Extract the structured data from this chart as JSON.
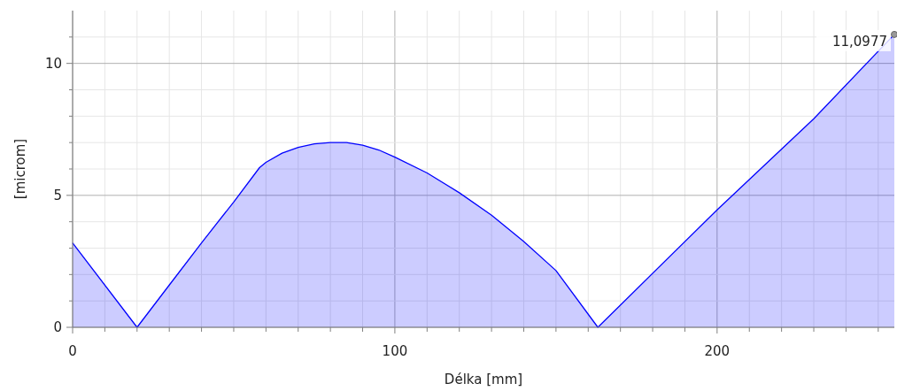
{
  "chart_data": {
    "type": "area",
    "xlabel": "Délka [mm]",
    "ylabel": "[microm]",
    "x": [
      0,
      20,
      30,
      40,
      50,
      58,
      60,
      65,
      70,
      75,
      80,
      85,
      90,
      95,
      100,
      110,
      120,
      130,
      140,
      150,
      163,
      200,
      230,
      255
    ],
    "series": [
      {
        "color": "#0000ff",
        "values": [
          3.2,
          0,
          1.6,
          3.2,
          4.75,
          6.05,
          6.25,
          6.6,
          6.82,
          6.95,
          7.0,
          7.0,
          6.9,
          6.72,
          6.45,
          5.85,
          5.1,
          4.25,
          3.25,
          2.15,
          0,
          4.45,
          7.9,
          11.0977
        ]
      }
    ],
    "xlim": [
      0,
      255
    ],
    "ylim": [
      0,
      12
    ],
    "xticks": [
      0,
      {
        "value": 10,
        "label": null
      },
      {
        "value": 20,
        "label": null
      },
      {
        "value": 30,
        "label": null
      },
      {
        "value": 40,
        "label": null
      },
      {
        "value": 50,
        "label": null
      },
      {
        "value": 60,
        "label": null
      },
      {
        "value": 70,
        "label": null
      },
      {
        "value": 80,
        "label": null
      },
      {
        "value": 90,
        "label": null
      },
      100,
      {
        "value": 110,
        "label": null
      },
      {
        "value": 120,
        "label": null
      },
      {
        "value": 130,
        "label": null
      },
      {
        "value": 140,
        "label": null
      },
      {
        "value": 150,
        "label": null
      },
      {
        "value": 160,
        "label": null
      },
      {
        "value": 170,
        "label": null
      },
      {
        "value": 180,
        "label": null
      },
      {
        "value": 190,
        "label": null
      },
      200,
      {
        "value": 210,
        "label": null
      },
      {
        "value": 220,
        "label": null
      },
      {
        "value": 230,
        "label": null
      },
      {
        "value": 240,
        "label": null
      },
      {
        "value": 250,
        "label": null
      }
    ],
    "yticks": [
      0,
      {
        "value": 1,
        "label": null
      },
      {
        "value": 2,
        "label": null
      },
      {
        "value": 3,
        "label": null
      },
      {
        "value": 4,
        "label": null
      },
      5,
      {
        "value": 6,
        "label": null
      },
      {
        "value": 7,
        "label": null
      },
      {
        "value": 8,
        "label": null
      },
      {
        "value": 9,
        "label": null
      },
      10,
      {
        "value": 11,
        "label": null
      }
    ],
    "grid": true,
    "annotations": [
      {
        "text": "11,0977",
        "x": 255,
        "y": 11.0977
      }
    ]
  }
}
